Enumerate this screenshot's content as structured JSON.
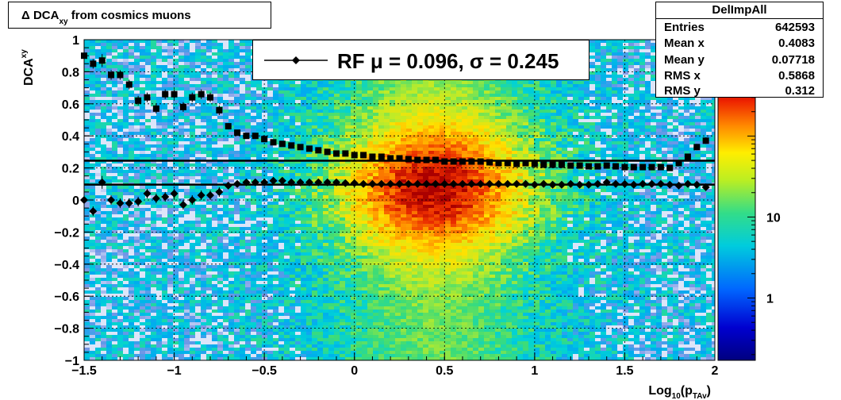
{
  "title": {
    "prefix": "Δ DCA",
    "sub": "xy",
    "suffix": " from cosmics muons"
  },
  "stats": {
    "name": "DelImpAll",
    "rows": [
      {
        "key": "Entries",
        "value": "642593"
      },
      {
        "key": "Mean x",
        "value": "0.4083"
      },
      {
        "key": "Mean y",
        "value": "0.07718"
      },
      {
        "key": "RMS x",
        "value": "0.5868"
      },
      {
        "key": "RMS y",
        "value": "0.312"
      }
    ]
  },
  "legend": {
    "label": "RF μ =  0.096, σ =   0.245"
  },
  "colors": {
    "markers": "#000000",
    "lines": "#000000"
  },
  "chart_data": {
    "type": "heatmap",
    "xlabel_main": "Log",
    "xlabel_sub1": "10",
    "xlabel_mid": "(p",
    "xlabel_sub2": "TAv",
    "xlabel_end": ")",
    "ylabel_main": "DCA",
    "ylabel_sub": "xy",
    "xlim": [
      -1.5,
      2
    ],
    "ylim": [
      -1,
      1
    ],
    "xticks": [
      -1.5,
      -1,
      -0.5,
      0,
      0.5,
      1,
      1.5,
      2
    ],
    "xtick_labels": [
      "−1.5",
      "−1",
      "−0.5",
      "0",
      "0.5",
      "1",
      "1.5",
      "2"
    ],
    "yticks": [
      1,
      0.8,
      0.6,
      0.4,
      0.2,
      0,
      -0.2,
      -0.4,
      -0.6,
      -0.8,
      -1
    ],
    "ytick_labels": [
      "1",
      "0.8",
      "0.6",
      "0.4",
      "0.2",
      "0",
      "−0.2",
      "−0.4",
      "−0.6",
      "−0.8",
      "−1"
    ],
    "grid": true,
    "colorbar": {
      "scale": "log",
      "labels": [
        {
          "value": 10,
          "text": "10"
        },
        {
          "value": 1,
          "text": "1"
        }
      ]
    },
    "horizontal_lines": [
      0.245,
      0.096
    ],
    "sigma_series": {
      "x": [
        -1.5,
        -1.45,
        -1.4,
        -1.35,
        -1.3,
        -1.25,
        -1.2,
        -1.15,
        -1.1,
        -1.05,
        -1.0,
        -0.95,
        -0.9,
        -0.85,
        -0.8,
        -0.75,
        -0.7,
        -0.65,
        -0.6,
        -0.55,
        -0.5,
        -0.45,
        -0.4,
        -0.35,
        -0.3,
        -0.25,
        -0.2,
        -0.15,
        -0.1,
        -0.05,
        0.0,
        0.05,
        0.1,
        0.15,
        0.2,
        0.25,
        0.3,
        0.35,
        0.4,
        0.45,
        0.5,
        0.55,
        0.6,
        0.65,
        0.7,
        0.75,
        0.8,
        0.85,
        0.9,
        0.95,
        1.0,
        1.05,
        1.1,
        1.15,
        1.2,
        1.25,
        1.3,
        1.35,
        1.4,
        1.45,
        1.5,
        1.55,
        1.6,
        1.65,
        1.7,
        1.75,
        1.8,
        1.85,
        1.9,
        1.95
      ],
      "y": [
        0.9,
        0.85,
        0.87,
        0.78,
        0.78,
        0.72,
        0.62,
        0.64,
        0.57,
        0.66,
        0.66,
        0.58,
        0.64,
        0.66,
        0.64,
        0.56,
        0.46,
        0.42,
        0.4,
        0.4,
        0.38,
        0.36,
        0.35,
        0.34,
        0.33,
        0.32,
        0.31,
        0.3,
        0.29,
        0.29,
        0.28,
        0.28,
        0.27,
        0.27,
        0.26,
        0.26,
        0.255,
        0.25,
        0.25,
        0.25,
        0.24,
        0.24,
        0.24,
        0.24,
        0.24,
        0.235,
        0.23,
        0.23,
        0.225,
        0.23,
        0.225,
        0.22,
        0.22,
        0.22,
        0.215,
        0.215,
        0.21,
        0.21,
        0.215,
        0.21,
        0.205,
        0.205,
        0.205,
        0.205,
        0.205,
        0.2,
        0.23,
        0.27,
        0.33,
        0.37
      ],
      "err": [
        0.03,
        0.03,
        0.04,
        0.03,
        0.03,
        0.03,
        0.03,
        0.03,
        0.03,
        0.03,
        0.03,
        0.03,
        0.03,
        0.03,
        0.03,
        0.03,
        0.02,
        0.01,
        0.01,
        0.01,
        0.01,
        0.01,
        0.01,
        0.01,
        0.01,
        0.01,
        0.01,
        0.01,
        0.01,
        0.01,
        0.01,
        0.01,
        0.01,
        0.01,
        0.01,
        0.01,
        0.01,
        0.01,
        0.01,
        0.01,
        0.01,
        0.01,
        0.01,
        0.01,
        0.01,
        0.01,
        0.01,
        0.01,
        0.01,
        0.01,
        0.01,
        0.01,
        0.01,
        0.01,
        0.01,
        0.01,
        0.01,
        0.01,
        0.01,
        0.01,
        0.01,
        0.01,
        0.01,
        0.01,
        0.01,
        0.01,
        0.01,
        0.01,
        0.02,
        0.02
      ]
    },
    "mu_series": {
      "x": [
        -1.5,
        -1.45,
        -1.4,
        -1.35,
        -1.3,
        -1.25,
        -1.2,
        -1.15,
        -1.1,
        -1.05,
        -1.0,
        -0.95,
        -0.9,
        -0.85,
        -0.8,
        -0.75,
        -0.7,
        -0.65,
        -0.6,
        -0.55,
        -0.5,
        -0.45,
        -0.4,
        -0.35,
        -0.3,
        -0.25,
        -0.2,
        -0.15,
        -0.1,
        -0.05,
        0.0,
        0.05,
        0.1,
        0.15,
        0.2,
        0.25,
        0.3,
        0.35,
        0.4,
        0.45,
        0.5,
        0.55,
        0.6,
        0.65,
        0.7,
        0.75,
        0.8,
        0.85,
        0.9,
        0.95,
        1.0,
        1.05,
        1.1,
        1.15,
        1.2,
        1.25,
        1.3,
        1.35,
        1.4,
        1.45,
        1.5,
        1.55,
        1.6,
        1.65,
        1.7,
        1.75,
        1.8,
        1.85,
        1.9,
        1.95
      ],
      "y": [
        0.0,
        -0.07,
        0.11,
        0.0,
        -0.02,
        -0.02,
        -0.01,
        0.04,
        0.01,
        0.02,
        0.04,
        -0.03,
        0.0,
        0.03,
        0.03,
        0.05,
        0.09,
        0.1,
        0.11,
        0.11,
        0.11,
        0.12,
        0.12,
        0.11,
        0.11,
        0.11,
        0.11,
        0.11,
        0.11,
        0.105,
        0.105,
        0.1,
        0.1,
        0.1,
        0.1,
        0.1,
        0.1,
        0.1,
        0.1,
        0.1,
        0.1,
        0.1,
        0.1,
        0.1,
        0.1,
        0.1,
        0.1,
        0.1,
        0.1,
        0.1,
        0.095,
        0.1,
        0.095,
        0.095,
        0.1,
        0.095,
        0.095,
        0.1,
        0.11,
        0.1,
        0.1,
        0.095,
        0.1,
        0.1,
        0.1,
        0.095,
        0.09,
        0.1,
        0.095,
        0.08
      ],
      "err": [
        0.03,
        0.03,
        0.04,
        0.03,
        0.03,
        0.03,
        0.03,
        0.03,
        0.03,
        0.03,
        0.03,
        0.03,
        0.03,
        0.03,
        0.03,
        0.03,
        0.02,
        0.01,
        0.01,
        0.01,
        0.01,
        0.01,
        0.01,
        0.01,
        0.01,
        0.01,
        0.01,
        0.01,
        0.01,
        0.01,
        0.01,
        0.01,
        0.01,
        0.01,
        0.01,
        0.01,
        0.01,
        0.01,
        0.01,
        0.01,
        0.01,
        0.01,
        0.01,
        0.01,
        0.01,
        0.01,
        0.01,
        0.01,
        0.01,
        0.01,
        0.01,
        0.01,
        0.01,
        0.01,
        0.01,
        0.01,
        0.01,
        0.01,
        0.01,
        0.01,
        0.01,
        0.01,
        0.01,
        0.01,
        0.01,
        0.01,
        0.01,
        0.01,
        0.02,
        0.02
      ]
    }
  }
}
